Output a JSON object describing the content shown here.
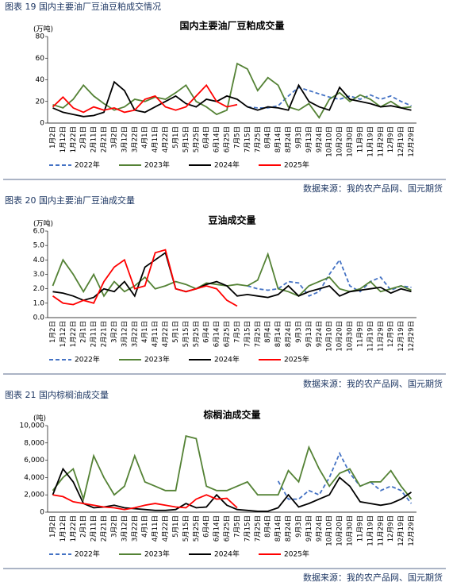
{
  "figures": [
    {
      "heading": "图表 19 国内主要油厂豆油豆粕成交情况",
      "source": "数据来源：我的农产品网、国元期货"
    },
    {
      "heading": "图表 20 国内主要油厂豆油成交量",
      "source": "数据来源：我的农产品网、国元期货"
    },
    {
      "heading": "图表 21 国内棕榈油成交量",
      "source": "数据来源：我的农产品网、国元期货"
    }
  ],
  "chart_data": [
    {
      "type": "line",
      "title": "国内主要油厂豆粕成交量",
      "y_label": "(万吨)",
      "categories": [
        "1月2日",
        "1月12日",
        "1月22日",
        "2月1日",
        "2月11日",
        "2月21日",
        "3月2日",
        "3月12日",
        "3月22日",
        "4月1日",
        "4月11日",
        "4月22日",
        "5月1日",
        "5月15日",
        "5月25日",
        "6月4日",
        "6月14日",
        "6月25日",
        "7月5日",
        "7月15日",
        "7月25日",
        "8月4日",
        "8月14日",
        "8月24日",
        "9月3日",
        "9月13日",
        "9月24日",
        "10月10日",
        "10月20日",
        "10月30日",
        "11月9日",
        "11月19日",
        "11月29日",
        "12月9日",
        "12月19日",
        "12月29日"
      ],
      "ylim": [
        0,
        80
      ],
      "yticks": [
        0,
        20,
        40,
        60,
        80
      ],
      "legend": "bottom",
      "series": [
        {
          "name": "2022年",
          "color": "#4472c4",
          "dash": true,
          "values": [
            null,
            null,
            null,
            null,
            null,
            null,
            null,
            null,
            null,
            null,
            null,
            null,
            null,
            null,
            null,
            null,
            null,
            null,
            null,
            15,
            14,
            14,
            16,
            25,
            33,
            30,
            27,
            24,
            22,
            25,
            22,
            26,
            22,
            25,
            20,
            16
          ]
        },
        {
          "name": "2023年",
          "color": "#548235",
          "dash": false,
          "values": [
            17,
            14,
            22,
            35,
            25,
            18,
            12,
            15,
            22,
            20,
            24,
            22,
            28,
            35,
            20,
            15,
            8,
            12,
            55,
            50,
            30,
            42,
            35,
            15,
            12,
            18,
            5,
            22,
            28,
            20,
            26,
            22,
            15,
            20,
            14,
            15
          ]
        },
        {
          "name": "2024年",
          "color": "#000000",
          "dash": false,
          "values": [
            14,
            10,
            8,
            6,
            7,
            10,
            38,
            30,
            12,
            10,
            15,
            20,
            25,
            18,
            15,
            22,
            20,
            25,
            22,
            15,
            12,
            15,
            14,
            12,
            35,
            20,
            15,
            12,
            33,
            22,
            20,
            18,
            15,
            16,
            14,
            12
          ]
        },
        {
          "name": "2025年",
          "color": "#ff0000",
          "dash": false,
          "values": [
            15,
            24,
            14,
            10,
            15,
            12,
            14,
            10,
            12,
            22,
            25,
            15,
            12,
            15,
            25,
            35,
            20,
            15,
            17,
            null,
            null,
            null,
            null,
            null,
            null,
            null,
            null,
            null,
            null,
            null,
            null,
            null,
            null,
            null,
            null,
            null
          ]
        }
      ]
    },
    {
      "type": "line",
      "title": "豆油成交量",
      "y_label": "(万吨)",
      "categories": [
        "1月2日",
        "1月12日",
        "1月22日",
        "2月1日",
        "2月11日",
        "2月21日",
        "3月2日",
        "3月12日",
        "3月22日",
        "4月1日",
        "4月11日",
        "4月22日",
        "5月1日",
        "5月15日",
        "5月25日",
        "6月4日",
        "6月14日",
        "6月25日",
        "7月5日",
        "7月15日",
        "7月25日",
        "8月4日",
        "8月14日",
        "8月24日",
        "9月3日",
        "9月13日",
        "9月24日",
        "10月10日",
        "10月20日",
        "10月30日",
        "11月9日",
        "11月19日",
        "11月29日",
        "12月9日",
        "12月19日",
        "12月29日"
      ],
      "ylim": [
        0,
        6
      ],
      "yticks": [
        {
          "value": 0,
          "label": "0.0"
        },
        {
          "value": 1,
          "label": "1.0"
        },
        {
          "value": 2,
          "label": "2.0"
        },
        {
          "value": 3,
          "label": "3.0"
        },
        {
          "value": 4,
          "label": "4.0"
        },
        {
          "value": 5,
          "label": "5.0"
        },
        {
          "value": 6,
          "label": "6.0"
        }
      ],
      "legend": "bottom",
      "series": [
        {
          "name": "2022年",
          "color": "#4472c4",
          "dash": true,
          "values": [
            null,
            null,
            null,
            null,
            null,
            null,
            null,
            null,
            null,
            null,
            null,
            null,
            null,
            null,
            null,
            null,
            null,
            null,
            null,
            2.2,
            2.0,
            1.9,
            2.0,
            2.5,
            2.4,
            1.5,
            1.8,
            3.0,
            4.0,
            2.2,
            1.8,
            2.5,
            2.8,
            1.9,
            2.2,
            2.1
          ]
        },
        {
          "name": "2023年",
          "color": "#548235",
          "dash": false,
          "values": [
            2.2,
            4.0,
            3.0,
            1.8,
            3.0,
            1.5,
            2.5,
            1.8,
            2.2,
            2.8,
            2.0,
            2.2,
            2.5,
            2.3,
            2.0,
            2.4,
            2.3,
            2.2,
            2.3,
            2.2,
            2.6,
            4.4,
            2.0,
            1.8,
            1.5,
            2.2,
            2.5,
            2.8,
            2.0,
            1.8,
            2.0,
            2.5,
            1.8,
            2.0,
            2.2,
            1.9
          ]
        },
        {
          "name": "2024年",
          "color": "#000000",
          "dash": false,
          "values": [
            1.8,
            1.7,
            1.5,
            1.2,
            1.4,
            2.0,
            1.8,
            2.5,
            1.5,
            3.5,
            4.0,
            4.5,
            2.0,
            1.8,
            2.0,
            2.3,
            2.5,
            2.2,
            1.5,
            1.6,
            1.5,
            1.4,
            1.6,
            2.2,
            1.5,
            1.8,
            2.0,
            2.2,
            1.5,
            1.8,
            1.9,
            2.0,
            2.1,
            1.7,
            2.0,
            1.8
          ]
        },
        {
          "name": "2025年",
          "color": "#ff0000",
          "dash": false,
          "values": [
            1.5,
            1.0,
            0.9,
            1.2,
            1.0,
            2.5,
            3.5,
            4.0,
            2.0,
            2.2,
            4.5,
            4.7,
            2.0,
            1.8,
            2.0,
            2.2,
            2.0,
            1.2,
            0.8,
            null,
            null,
            null,
            null,
            null,
            null,
            null,
            null,
            null,
            null,
            null,
            null,
            null,
            null,
            null,
            null,
            null
          ]
        }
      ]
    },
    {
      "type": "line",
      "title": "棕榈油成交量",
      "y_label": "(吨)",
      "categories": [
        "1月2日",
        "1月12日",
        "1月22日",
        "2月1日",
        "2月11日",
        "2月21日",
        "3月2日",
        "3月12日",
        "3月22日",
        "4月1日",
        "4月11日",
        "4月22日",
        "5月1日",
        "5月15日",
        "5月25日",
        "6月4日",
        "6月14日",
        "6月25日",
        "7月5日",
        "7月15日",
        "7月25日",
        "8月4日",
        "8月14日",
        "8月24日",
        "9月3日",
        "9月13日",
        "9月24日",
        "10月10日",
        "10月20日",
        "10月30日",
        "11月9日",
        "11月19日",
        "11月29日",
        "12月9日",
        "12月19日",
        "12月29日"
      ],
      "ylim": [
        0,
        10000
      ],
      "yticks": [
        0,
        {
          "value": 2000,
          "label": "2,000"
        },
        {
          "value": 4000,
          "label": "4,000"
        },
        {
          "value": 6000,
          "label": "6,000"
        },
        {
          "value": 8000,
          "label": "8,000"
        },
        {
          "value": 10000,
          "label": "10,000"
        }
      ],
      "legend": "bottom",
      "series": [
        {
          "name": "2022年",
          "color": "#4472c4",
          "dash": true,
          "values": [
            null,
            null,
            null,
            null,
            null,
            null,
            null,
            null,
            null,
            null,
            null,
            null,
            null,
            null,
            null,
            null,
            null,
            null,
            null,
            null,
            null,
            null,
            3600,
            1500,
            1500,
            2500,
            2000,
            4000,
            6800,
            4500,
            3000,
            3500,
            2500,
            3000,
            2500,
            1000
          ]
        },
        {
          "name": "2023年",
          "color": "#548235",
          "dash": false,
          "values": [
            2500,
            4000,
            5000,
            1500,
            6500,
            4000,
            2000,
            3000,
            6500,
            3500,
            3000,
            2500,
            2500,
            8800,
            8500,
            3000,
            2500,
            2500,
            3000,
            3500,
            2000,
            2000,
            2000,
            4800,
            3500,
            7500,
            5000,
            3000,
            4500,
            5000,
            3000,
            3500,
            3500,
            4800,
            3000,
            1500
          ]
        },
        {
          "name": "2024年",
          "color": "#000000",
          "dash": false,
          "values": [
            2000,
            5000,
            3500,
            1000,
            500,
            600,
            800,
            500,
            400,
            300,
            200,
            200,
            300,
            1000,
            500,
            600,
            2000,
            800,
            300,
            200,
            100,
            100,
            500,
            2000,
            600,
            1000,
            1500,
            2000,
            4000,
            3000,
            1200,
            1000,
            800,
            1000,
            1500,
            2300
          ]
        },
        {
          "name": "2025年",
          "color": "#ff0000",
          "dash": false,
          "values": [
            2000,
            1800,
            1200,
            1000,
            800,
            600,
            500,
            300,
            500,
            800,
            1000,
            800,
            600,
            500,
            1500,
            2000,
            1500,
            1600,
            500,
            null,
            null,
            null,
            null,
            null,
            null,
            null,
            null,
            null,
            null,
            null,
            null,
            null,
            null,
            null,
            null,
            null
          ]
        }
      ]
    }
  ]
}
